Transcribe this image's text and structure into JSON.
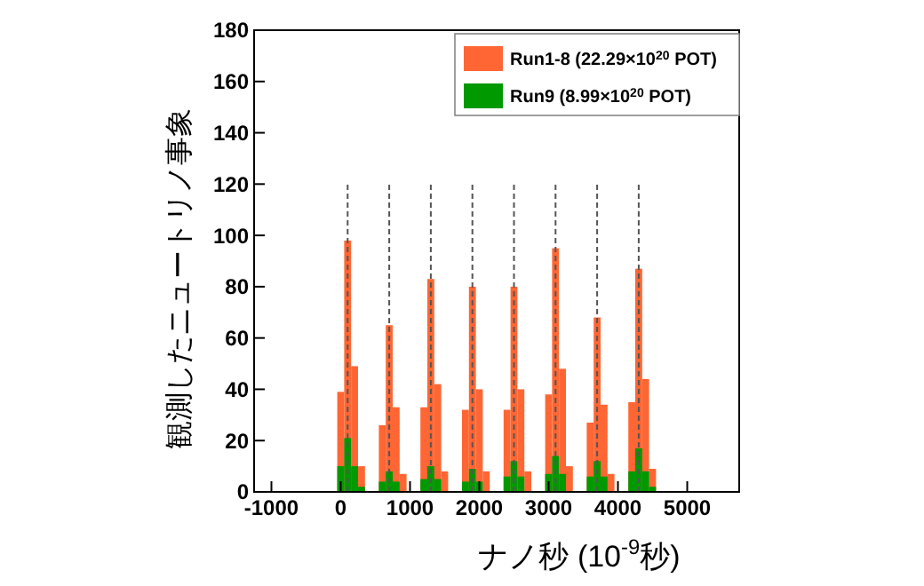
{
  "chart_data": {
    "type": "histogram",
    "xlabel": "ナノ秒 (10$^{-9}$秒)",
    "ylabel": "観測したニュートリノ事象",
    "bins": [
      -1250,
      -1150,
      -1050,
      -950,
      -850,
      -750,
      -650,
      -550,
      -450,
      -350,
      -250,
      -150,
      -50,
      50,
      150,
      250,
      350,
      450,
      550,
      650,
      750,
      850,
      950,
      1050,
      1150,
      1250,
      1350,
      1450,
      1550,
      1650,
      1750,
      1850,
      1950,
      2050,
      2150,
      2250,
      2350,
      2450,
      2550,
      2650,
      2750,
      2850,
      2950,
      3050,
      3150,
      3250,
      3350,
      3450,
      3550,
      3650,
      3750,
      3850,
      3950,
      4050,
      4150,
      4250,
      4350,
      4450,
      4550,
      4650,
      4750,
      4850,
      4950,
      5050,
      5150,
      5250,
      5350,
      5450,
      5550,
      5650,
      5750
    ],
    "series": [
      {
        "name": "Run1-8 (22.29×10$^{20}$ POT)",
        "color": "#ff6633",
        "values": [
          0,
          0,
          0,
          0,
          0,
          0,
          0,
          0,
          0,
          0,
          0,
          0,
          39,
          98,
          49,
          10,
          0,
          0,
          26,
          65,
          33,
          7,
          0,
          0,
          33,
          83,
          42,
          8,
          0,
          0,
          32,
          80,
          40,
          8,
          0,
          0,
          32,
          80,
          40,
          8,
          0,
          0,
          38,
          95,
          48,
          10,
          0,
          0,
          27,
          68,
          34,
          7,
          0,
          0,
          35,
          87,
          44,
          9,
          0,
          0,
          0,
          0,
          0,
          0,
          0,
          0,
          0,
          0,
          0,
          0
        ]
      },
      {
        "name": "Run9 (8.99×10$^{20}$ POT)",
        "color": "#009900",
        "values": [
          0,
          0,
          0,
          0,
          0,
          0,
          0,
          0,
          0,
          0,
          0,
          0,
          10,
          21,
          10,
          2,
          0,
          0,
          4,
          8,
          4,
          0,
          0,
          0,
          5,
          10,
          5,
          0,
          0,
          0,
          4,
          9,
          4,
          0,
          0,
          0,
          6,
          12,
          6,
          0,
          0,
          0,
          7,
          14,
          7,
          0,
          0,
          0,
          6,
          12,
          6,
          0,
          0,
          0,
          8,
          17,
          8,
          2,
          0,
          0,
          0,
          0,
          0,
          0,
          0,
          0,
          0,
          0,
          0,
          0
        ]
      },
      {
        "type": "line",
        "color": "#555555",
        "line_style": "dashed",
        "x": [
          100,
          100
        ],
        "values": [
          0,
          120
        ]
      },
      {
        "type": "line",
        "color": "#555555",
        "line_style": "dashed",
        "x": [
          700,
          700
        ],
        "values": [
          0,
          120
        ]
      },
      {
        "type": "line",
        "color": "#555555",
        "line_style": "dashed",
        "x": [
          1300,
          1300
        ],
        "values": [
          0,
          120
        ]
      },
      {
        "type": "line",
        "color": "#555555",
        "line_style": "dashed",
        "x": [
          1900,
          1900
        ],
        "values": [
          0,
          120
        ]
      },
      {
        "type": "line",
        "color": "#555555",
        "line_style": "dashed",
        "x": [
          2500,
          2500
        ],
        "values": [
          0,
          120
        ]
      },
      {
        "type": "line",
        "color": "#555555",
        "line_style": "dashed",
        "x": [
          3100,
          3100
        ],
        "values": [
          0,
          120
        ]
      },
      {
        "type": "line",
        "color": "#555555",
        "line_style": "dashed",
        "x": [
          3700,
          3700
        ],
        "values": [
          0,
          120
        ]
      },
      {
        "type": "line",
        "color": "#555555",
        "line_style": "dashed",
        "x": [
          4300,
          4300
        ],
        "values": [
          0,
          120
        ]
      }
    ],
    "xlim": [
      -1250,
      5750
    ],
    "xticks": [
      -1000,
      0,
      1000,
      2000,
      3000,
      4000,
      5000
    ],
    "ylim": [
      0,
      180
    ],
    "yticks": [
      0,
      20,
      40,
      60,
      80,
      100,
      120,
      140,
      160,
      180
    ],
    "legend": "top right"
  }
}
